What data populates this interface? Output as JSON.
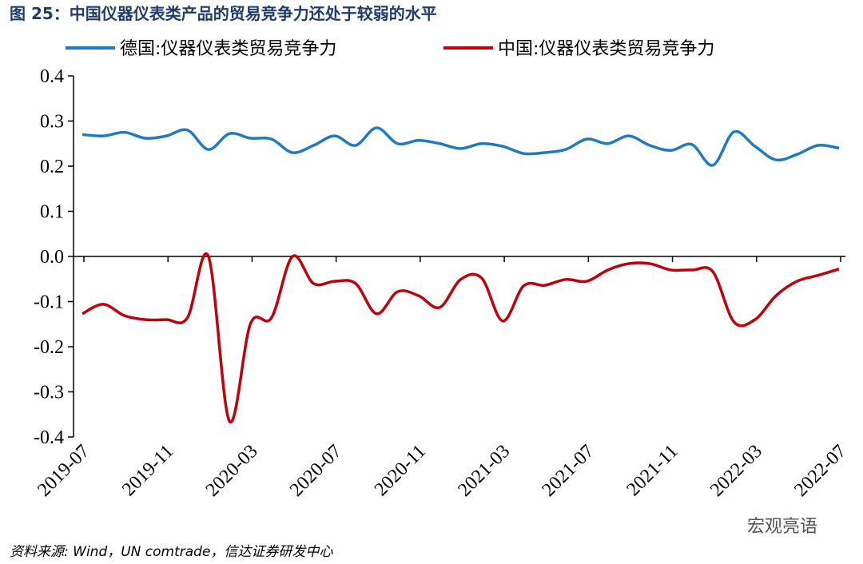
{
  "chart_data": {
    "type": "line",
    "title": "图 25：中国仪器仪表类产品的贸易竞争力还处于较弱的水平",
    "source": "资料来源: Wind，UN comtrade，信达证券研发中心",
    "watermark": "宏观亮语",
    "categories": [
      "2019-07",
      null,
      null,
      null,
      "2019-11",
      null,
      null,
      null,
      "2020-03",
      null,
      null,
      null,
      "2020-07",
      null,
      null,
      null,
      "2020-11",
      null,
      null,
      null,
      "2021-03",
      null,
      null,
      null,
      "2021-07",
      null,
      null,
      null,
      "2021-11",
      null,
      null,
      null,
      "2022-03",
      null,
      null,
      null,
      "2022-07"
    ],
    "series": [
      {
        "name": "德国:仪器仪表类贸易竞争力",
        "color": "#1f7bc1",
        "values": [
          0.27,
          0.267,
          0.275,
          0.262,
          0.267,
          0.28,
          0.237,
          0.272,
          0.262,
          0.26,
          0.23,
          0.246,
          0.267,
          0.246,
          0.285,
          0.25,
          0.257,
          0.25,
          0.239,
          0.25,
          0.244,
          0.228,
          0.23,
          0.237,
          0.26,
          0.25,
          0.267,
          0.246,
          0.235,
          0.248,
          0.202,
          0.276,
          0.244,
          0.214,
          0.226,
          0.246,
          0.24
        ]
      },
      {
        "name": "中国:仪器仪表类贸易竞争力",
        "color": "#c0000b",
        "values": [
          -0.127,
          -0.106,
          -0.131,
          -0.14,
          -0.14,
          -0.136,
          0.0,
          -0.365,
          -0.149,
          -0.136,
          0.0,
          -0.06,
          -0.055,
          -0.06,
          -0.127,
          -0.078,
          -0.087,
          -0.113,
          -0.051,
          -0.048,
          -0.143,
          -0.065,
          -0.064,
          -0.051,
          -0.055,
          -0.03,
          -0.016,
          -0.016,
          -0.03,
          -0.03,
          -0.034,
          -0.145,
          -0.14,
          -0.087,
          -0.055,
          -0.042,
          -0.028
        ]
      }
    ],
    "ylim": [
      -0.4,
      0.4
    ],
    "yticks": [
      0.4,
      0.3,
      0.2,
      0.1,
      {
        "value": 0,
        "label": "0.0"
      },
      -0.1,
      -0.2,
      -0.3,
      -0.4
    ],
    "legend": "top"
  }
}
